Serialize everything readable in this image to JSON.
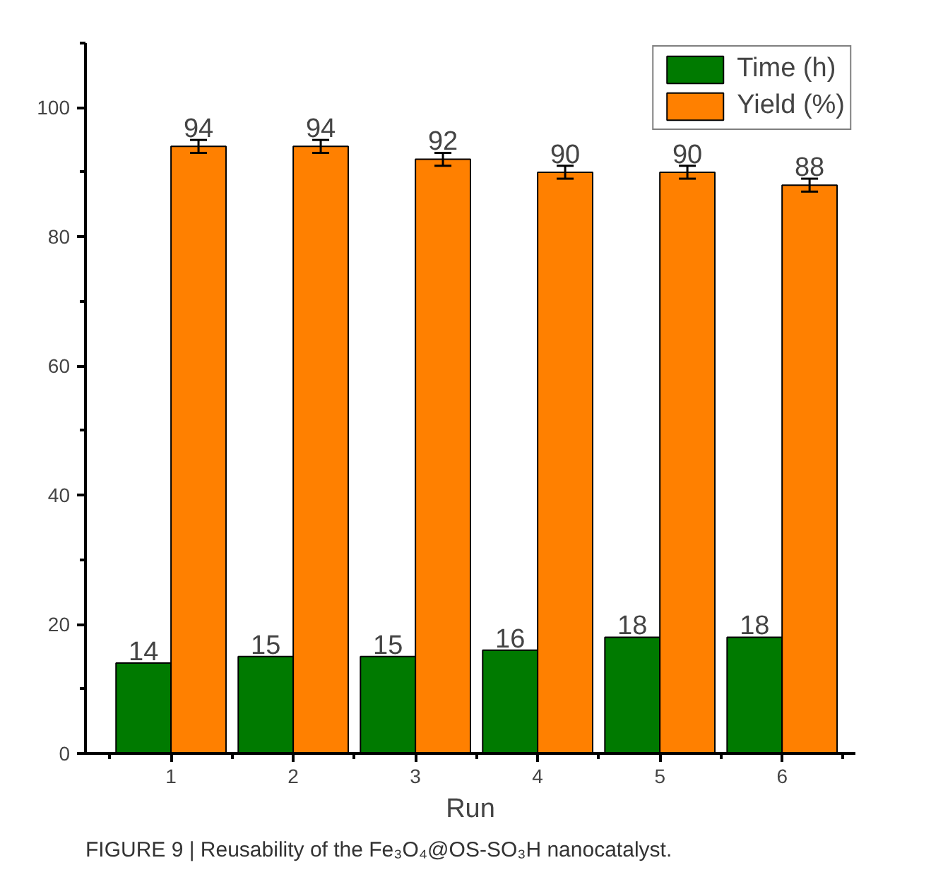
{
  "chart_data": {
    "type": "bar",
    "xlabel": "Run",
    "categories": [
      "1",
      "2",
      "3",
      "4",
      "5",
      "6"
    ],
    "series": [
      {
        "name": "Time (h)",
        "color": "#007a00",
        "values": [
          14,
          15,
          15,
          16,
          18,
          18
        ]
      },
      {
        "name": "Yield (%)",
        "color": "#ff8000",
        "values": [
          94,
          94,
          92,
          90,
          90,
          88
        ],
        "errors": [
          1,
          1,
          1,
          1,
          1,
          1
        ]
      }
    ],
    "ylim": [
      0,
      110
    ],
    "yticks": [
      0,
      20,
      40,
      60,
      80,
      100
    ],
    "data_labels": true,
    "legend": "top right",
    "grid": false,
    "annotations": [
      "FIGURE 9 | Reusability of the Fe₃O₄@OS-SO₃H nanocatalyst."
    ]
  }
}
